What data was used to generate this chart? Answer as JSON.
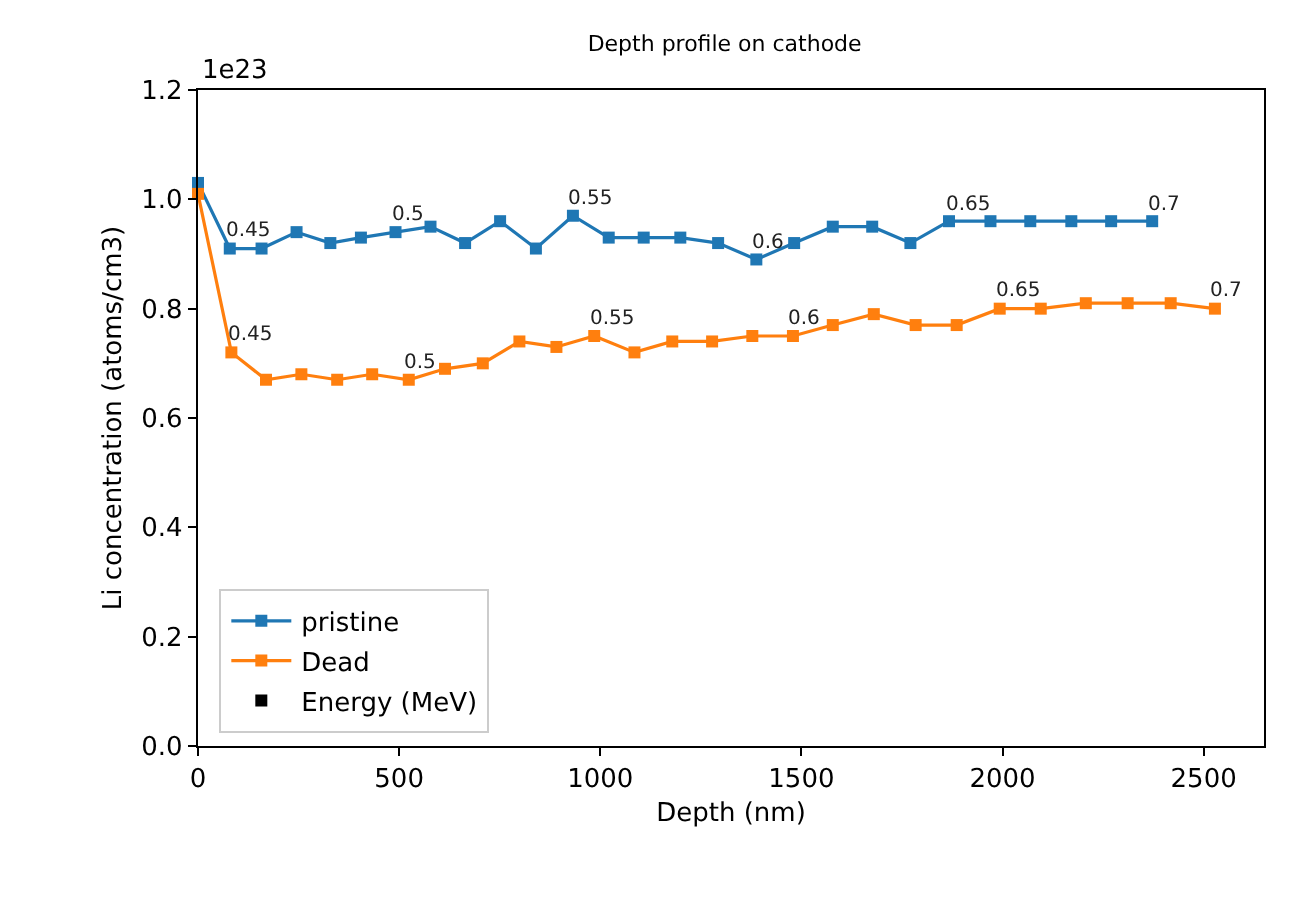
{
  "chart_data": {
    "type": "line",
    "title": "Depth profile on cathode",
    "xlabel": "Depth (nm)",
    "ylabel": "Li concentration (atoms/cm3)",
    "annotations": [
      "1e23",
      {
        "text": "0.45",
        "x": 79,
        "y": 0.91
      },
      {
        "text": "0.5",
        "x": 491,
        "y": 0.94
      },
      {
        "text": "0.55",
        "x": 932,
        "y": 0.97
      },
      {
        "text": "0.6",
        "x": 1388,
        "y": 0.89
      },
      {
        "text": "0.65",
        "x": 1867,
        "y": 0.96
      },
      {
        "text": "0.7",
        "x": 2372,
        "y": 0.96
      },
      {
        "text": "0.45",
        "x": 83,
        "y": 0.72
      },
      {
        "text": "0.5",
        "x": 524,
        "y": 0.67
      },
      {
        "text": "0.55",
        "x": 985,
        "y": 0.75
      },
      {
        "text": "0.6",
        "x": 1479,
        "y": 0.75
      },
      {
        "text": "0.65",
        "x": 1993,
        "y": 0.8
      },
      {
        "text": "0.7",
        "x": 2528,
        "y": 0.8
      }
    ],
    "xlim": [
      0,
      2650
    ],
    "xticks": [
      0,
      500,
      1000,
      1500,
      2000,
      2500
    ],
    "ylim": [
      0.0,
      1.2
    ],
    "yticks": [
      {
        "value": 0.0,
        "label": "0.0"
      },
      0.2,
      0.4,
      0.6,
      0.8,
      {
        "value": 1.0,
        "label": "1.0"
      },
      1.2
    ],
    "legend": "bottom left",
    "marker": "square",
    "line_style": "solid",
    "series": [
      {
        "name": "pristine",
        "color": "#1f77b4",
        "x": [
          0,
          79,
          158,
          245,
          329,
          405,
          491,
          578,
          664,
          751,
          840,
          932,
          1021,
          1108,
          1199,
          1293,
          1388,
          1482,
          1578,
          1676,
          1771,
          1867,
          1970,
          2069,
          2171,
          2270,
          2372
        ],
        "values": [
          1.03,
          0.91,
          0.91,
          0.94,
          0.92,
          0.93,
          0.94,
          0.95,
          0.92,
          0.96,
          0.91,
          0.97,
          0.93,
          0.93,
          0.93,
          0.92,
          0.89,
          0.92,
          0.95,
          0.95,
          0.92,
          0.96,
          0.96,
          0.96,
          0.96,
          0.96,
          0.96
        ]
      },
      {
        "name": "Dead",
        "color": "#ff7f0e",
        "x": [
          0,
          83,
          169,
          257,
          346,
          433,
          524,
          614,
          708,
          799,
          891,
          985,
          1085,
          1179,
          1278,
          1378,
          1479,
          1578,
          1680,
          1784,
          1886,
          1993,
          2095,
          2207,
          2311,
          2418,
          2528
        ],
        "values": [
          1.01,
          0.72,
          0.67,
          0.68,
          0.67,
          0.68,
          0.67,
          0.69,
          0.7,
          0.74,
          0.73,
          0.75,
          0.72,
          0.74,
          0.74,
          0.75,
          0.75,
          0.77,
          0.79,
          0.77,
          0.77,
          0.8,
          0.8,
          0.81,
          0.81,
          0.81,
          0.8
        ]
      },
      {
        "name": "Energy (MeV)",
        "color": "#000000",
        "type": "scatter"
      }
    ]
  }
}
